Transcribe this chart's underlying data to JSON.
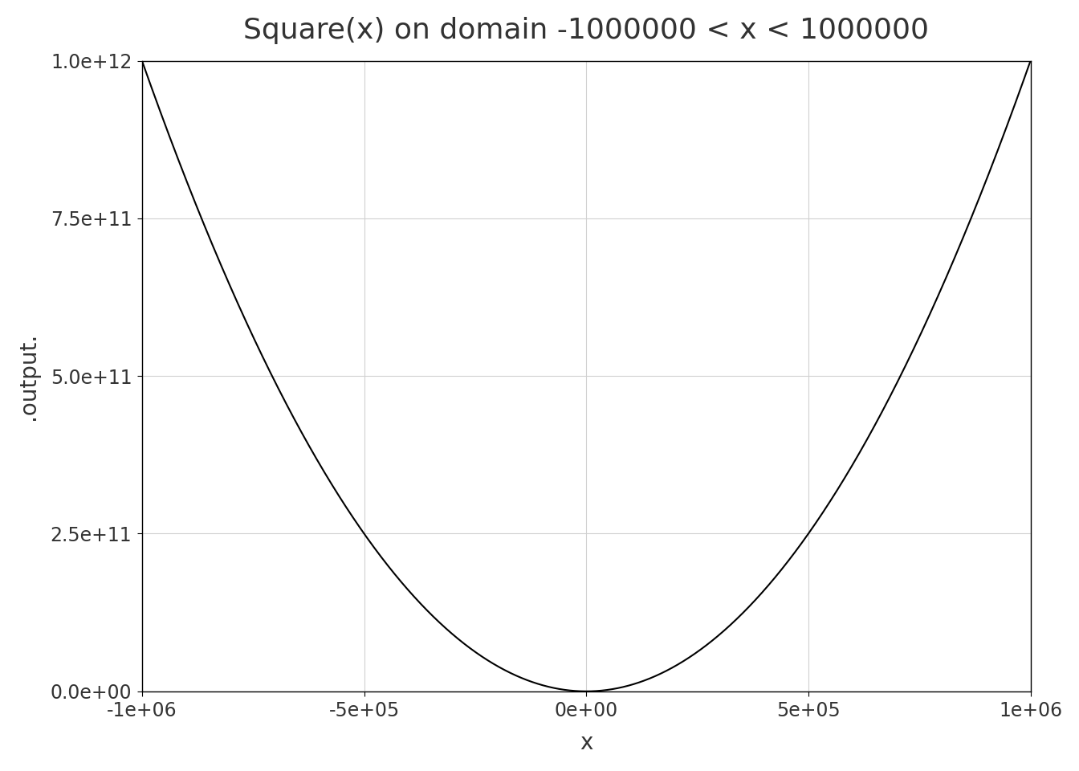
{
  "title": "Square(x) on domain -1000000 < x < 1000000",
  "xlabel": "x",
  "ylabel": ".output.",
  "x_min": -1000000,
  "x_max": 1000000,
  "y_min": 0,
  "y_max": 1000000000000.0,
  "line_color": "#000000",
  "line_width": 1.5,
  "background_color": "#ffffff",
  "plot_bg_color": "#ffffff",
  "grid_color": "#d0d0d0",
  "title_fontsize": 26,
  "label_fontsize": 20,
  "tick_fontsize": 17,
  "x_ticks": [
    -1000000,
    -500000,
    0,
    500000,
    1000000
  ],
  "x_tick_labels": [
    "-1e+06",
    "-5e+05",
    "0e+00",
    "5e+05",
    "1e+06"
  ],
  "y_ticks": [
    0,
    250000000000.0,
    500000000000.0,
    750000000000.0,
    1000000000000.0
  ],
  "y_tick_labels": [
    "0.0e+00",
    "2.5e+11",
    "5.0e+11",
    "7.5e+11",
    "1.0e+12"
  ]
}
